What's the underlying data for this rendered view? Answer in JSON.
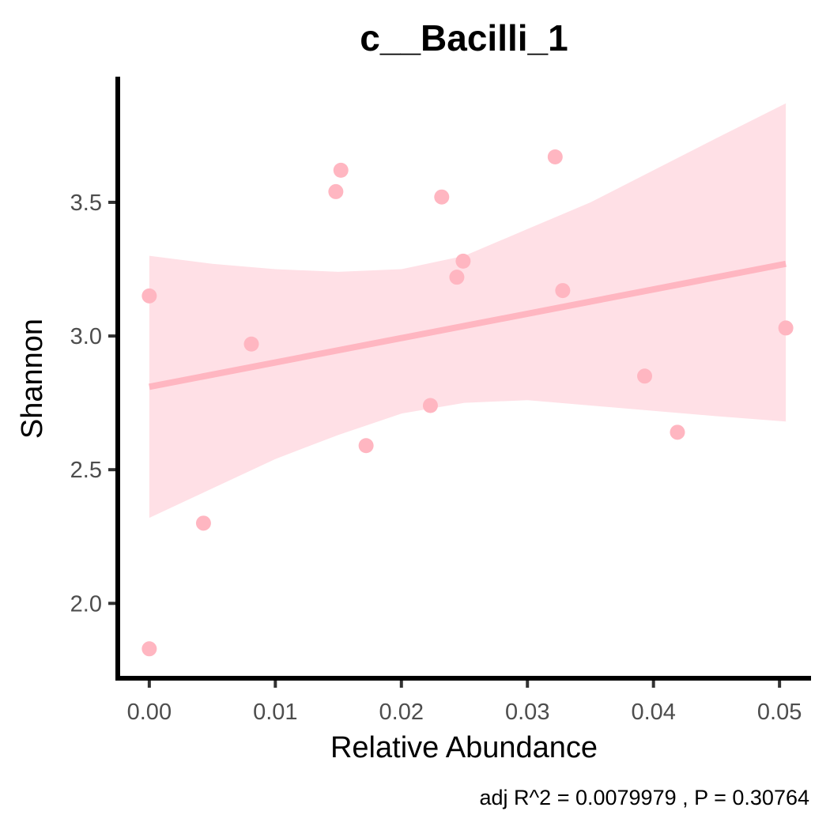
{
  "chart_data": {
    "type": "scatter",
    "title": "c__Bacilli_1",
    "xlabel": "Relative Abundance",
    "ylabel": "Shannon",
    "caption": "adj R^2 =  0.0079979 , P = 0.30764",
    "xlim": [
      -0.0025,
      0.0525
    ],
    "ylim": [
      1.72,
      3.97
    ],
    "x_ticks": [
      0.0,
      0.01,
      0.02,
      0.03,
      0.04,
      0.05
    ],
    "x_tick_labels": [
      "0.00",
      "0.01",
      "0.02",
      "0.03",
      "0.04",
      "0.05"
    ],
    "y_ticks": [
      2.0,
      2.5,
      3.0,
      3.5
    ],
    "y_tick_labels": [
      "2.0",
      "2.5",
      "3.0",
      "3.5"
    ],
    "grid": false,
    "point_color": "#ffb6c1",
    "fit_color": "#ffb6c1",
    "band_color": "#ffe0e6",
    "points": [
      {
        "x": 0.0,
        "y": 3.15
      },
      {
        "x": 0.0,
        "y": 1.83
      },
      {
        "x": 0.0043,
        "y": 2.3
      },
      {
        "x": 0.0081,
        "y": 2.97
      },
      {
        "x": 0.0148,
        "y": 3.54
      },
      {
        "x": 0.0152,
        "y": 3.62
      },
      {
        "x": 0.0172,
        "y": 2.59
      },
      {
        "x": 0.0223,
        "y": 2.74
      },
      {
        "x": 0.0232,
        "y": 3.52
      },
      {
        "x": 0.0244,
        "y": 3.22
      },
      {
        "x": 0.0249,
        "y": 3.28
      },
      {
        "x": 0.0322,
        "y": 3.67
      },
      {
        "x": 0.0328,
        "y": 3.17
      },
      {
        "x": 0.0393,
        "y": 2.85
      },
      {
        "x": 0.0419,
        "y": 2.64
      },
      {
        "x": 0.0505,
        "y": 3.03
      }
    ],
    "fit": {
      "x": [
        0.0,
        0.0505
      ],
      "y": [
        2.81,
        3.27
      ]
    },
    "confidence_band": {
      "x": [
        0.0,
        0.005,
        0.01,
        0.015,
        0.02,
        0.025,
        0.03,
        0.035,
        0.04,
        0.045,
        0.0505
      ],
      "upper": [
        3.3,
        3.27,
        3.25,
        3.24,
        3.25,
        3.3,
        3.4,
        3.5,
        3.62,
        3.74,
        3.87
      ],
      "lower": [
        2.32,
        2.43,
        2.54,
        2.63,
        2.71,
        2.75,
        2.76,
        2.74,
        2.72,
        2.7,
        2.68
      ]
    }
  }
}
